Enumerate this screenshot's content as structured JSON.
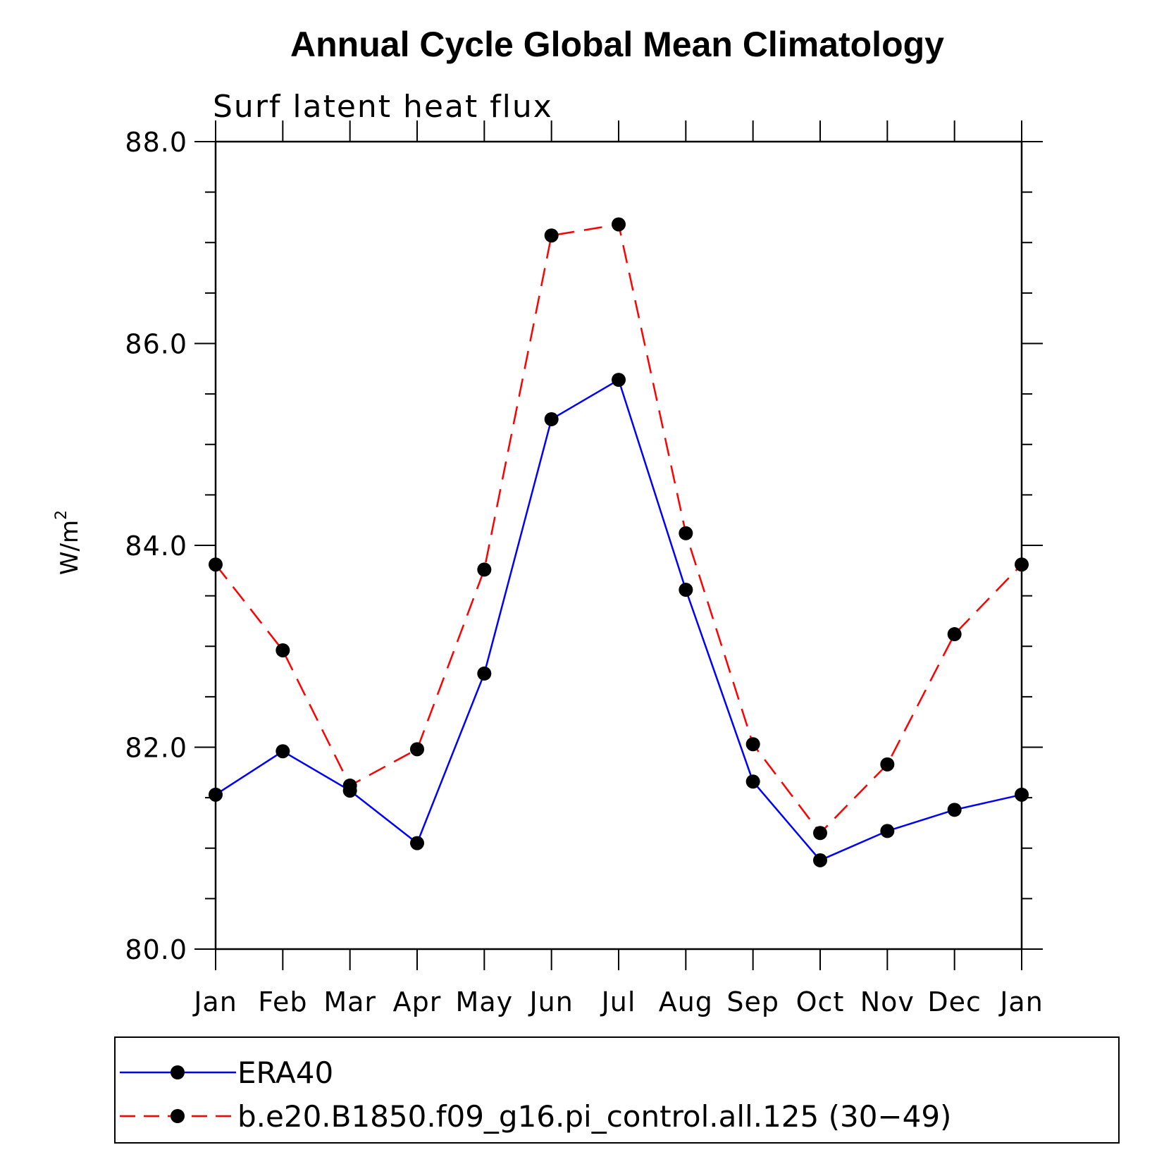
{
  "chart_data": {
    "type": "line",
    "title": "Annual Cycle Global Mean Climatology",
    "subtitle": "Surf latent heat flux",
    "ylabel": "W/m",
    "ylabel_sup": "2",
    "ylim": [
      80.0,
      88.0
    ],
    "y_major_ticks": [
      "80.0",
      "82.0",
      "84.0",
      "86.0",
      "88.0"
    ],
    "y_minor_step": 0.5,
    "categories": [
      "Jan",
      "Feb",
      "Mar",
      "Apr",
      "May",
      "Jun",
      "Jul",
      "Aug",
      "Sep",
      "Oct",
      "Nov",
      "Dec",
      "Jan"
    ],
    "grid": false,
    "legend_position": "bottom",
    "series": [
      {
        "name": "ERA40",
        "color": "#0000ff",
        "dash": "solid",
        "marker": "filled-circle",
        "values": [
          81.53,
          81.96,
          81.57,
          81.05,
          82.73,
          85.25,
          85.64,
          83.56,
          81.66,
          80.88,
          81.17,
          81.38,
          81.53
        ]
      },
      {
        "name": "b.e20.B1850.f09_g16.pi_control.all.125 (30−49)",
        "color": "#ff0000",
        "dash": "dashed",
        "marker": "filled-circle",
        "values": [
          83.81,
          82.96,
          81.62,
          81.98,
          83.76,
          87.07,
          87.18,
          84.12,
          82.03,
          81.15,
          81.83,
          83.12,
          83.81
        ]
      }
    ]
  }
}
